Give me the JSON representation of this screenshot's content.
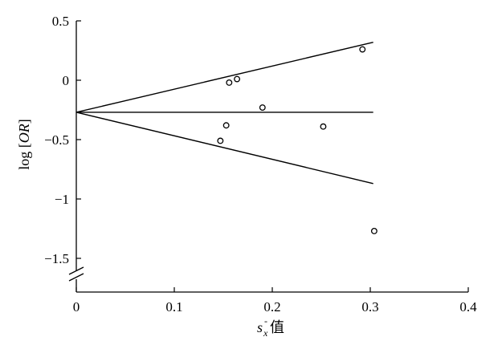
{
  "chart_data": {
    "type": "scatter",
    "title": "",
    "xlabel_main": "s",
    "xlabel_sub": "x",
    "xlabel_bar": "-",
    "xlabel_suffix": "值",
    "ylabel_prefix": "log [",
    "ylabel_var": "OR",
    "ylabel_suffix": "]",
    "xlim": [
      0,
      0.4
    ],
    "ylim": [
      -1.7,
      0.5
    ],
    "x_ticks": [
      0,
      0.1,
      0.2,
      0.3,
      0.4
    ],
    "x_tick_labels": [
      "0",
      "0.1",
      "0.2",
      "0.3",
      "0.4"
    ],
    "y_ticks": [
      0.5,
      0,
      -0.5,
      -1,
      -1.5
    ],
    "y_tick_labels": [
      "0.5",
      "0",
      "−0.5",
      "−1",
      "−1.5"
    ],
    "y_axis_break": true,
    "grid": false,
    "points": [
      {
        "x": 0.147,
        "y": -0.51
      },
      {
        "x": 0.153,
        "y": -0.38
      },
      {
        "x": 0.156,
        "y": -0.02
      },
      {
        "x": 0.164,
        "y": 0.01
      },
      {
        "x": 0.19,
        "y": -0.23
      },
      {
        "x": 0.252,
        "y": -0.39
      },
      {
        "x": 0.292,
        "y": 0.26
      },
      {
        "x": 0.304,
        "y": -1.27
      }
    ],
    "lines": [
      {
        "name": "pooled",
        "x": [
          0,
          0.303
        ],
        "y": [
          -0.27,
          -0.27
        ]
      },
      {
        "name": "upper",
        "x": [
          0,
          0.303
        ],
        "y": [
          -0.27,
          0.32
        ]
      },
      {
        "name": "lower",
        "x": [
          0,
          0.303
        ],
        "y": [
          -0.27,
          -0.87
        ]
      }
    ]
  }
}
